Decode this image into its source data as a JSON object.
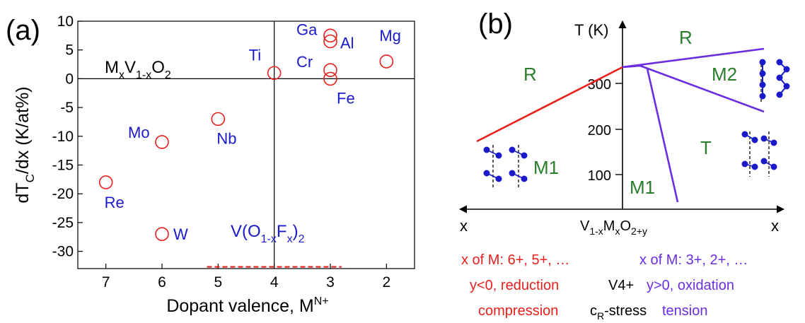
{
  "chart_data": [
    {
      "type": "scatter",
      "panel_label": "(a)",
      "formula": {
        "base": "M",
        "sub1": "x",
        "mid": "V",
        "sub2": "1-x",
        "end": "O",
        "sub3": "2"
      },
      "ylabel": {
        "a": "dT",
        "sub": "C",
        "b": "/dx (K/at%)"
      },
      "xlabel": {
        "text": "Dopant valence, M",
        "sup": "N+"
      },
      "xlim": [
        7.5,
        1.5
      ],
      "ylim": [
        -33,
        10
      ],
      "x_ticks": [
        7,
        6,
        5,
        4,
        3,
        2
      ],
      "y_ticks": [
        10,
        5,
        0,
        -5,
        -10,
        -15,
        -20,
        -25,
        -30
      ],
      "reference_lines": {
        "x": 4,
        "y": 0
      },
      "marker_color": "#e8201c",
      "label_color": "#1a1acb",
      "points": [
        {
          "label": "Ga",
          "x": 3,
          "y": 7.5
        },
        {
          "label": "Al",
          "x": 3,
          "y": 6.5
        },
        {
          "label": "Mg",
          "x": 2,
          "y": 3
        },
        {
          "label": "Cr",
          "x": 3,
          "y": 1.5
        },
        {
          "label": "Ti",
          "x": 4,
          "y": 1
        },
        {
          "label": "Fe",
          "x": 3,
          "y": 0
        },
        {
          "label": "Nb",
          "x": 5,
          "y": -7
        },
        {
          "label": "Mo",
          "x": 6,
          "y": -11
        },
        {
          "label": "Re",
          "x": 7,
          "y": -18
        },
        {
          "label": "W",
          "x": 6,
          "y": -27
        }
      ],
      "fluoride": {
        "pre": "V(O",
        "sub1": "1-x",
        "mid": "F",
        "sub2": "x",
        "post": ")",
        "sub3": "2",
        "x_range": [
          5.2,
          2.8
        ],
        "y": -32.7,
        "color": "#e8201c"
      }
    },
    {
      "type": "phase-diagram",
      "panel_label": "(b)",
      "y_axis_title": "T (K)",
      "y_ticks": [
        100,
        200,
        300
      ],
      "x_label_left": "x",
      "x_label_right": "x",
      "center_formula": {
        "a": "V",
        "s1": "1-x",
        "b": "M",
        "s2": "x",
        "c": "O",
        "s3": "2+y"
      },
      "phase_labels": {
        "R_left": "R",
        "R_top": "R",
        "M2": "M2",
        "T": "T",
        "M1_left": "M1",
        "M1_bottom": "M1"
      },
      "phase_label_color": "#2a7d2a",
      "line_colors": {
        "left": "#e8201c",
        "right": "#6a2ee0"
      },
      "footer": {
        "left": [
          "x of M: 6+, 5+, …",
          "y<0, reduction",
          "compression"
        ],
        "center": [
          "V4+",
          "-stress"
        ],
        "center_symbol": {
          "c": "c",
          "sub": "R"
        },
        "right": [
          "x of M: 3+, 2+, …",
          "y>0, oxidation",
          "tension"
        ]
      }
    }
  ]
}
